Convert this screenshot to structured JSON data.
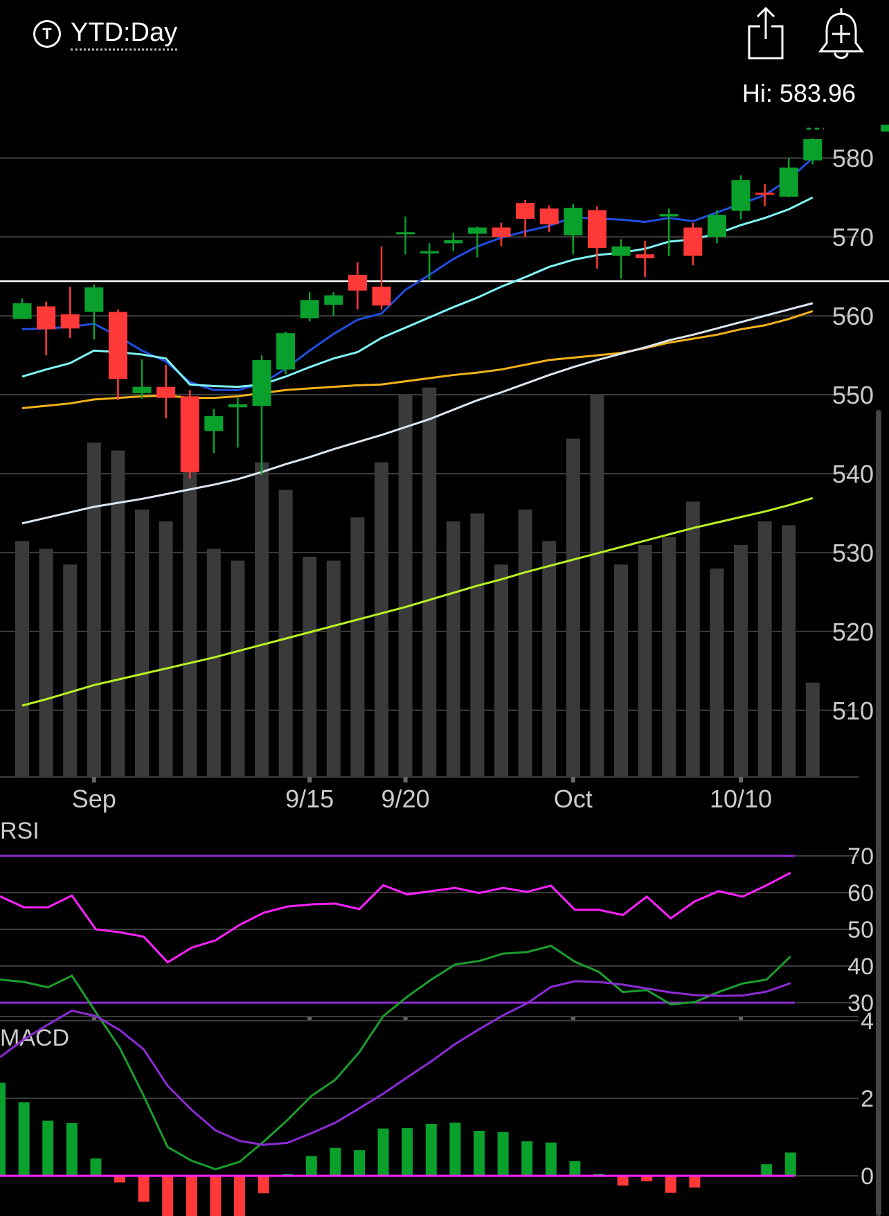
{
  "header": {
    "symbol_icon_letter": "T",
    "range_label": "YTD:Day",
    "hi_label": "Hi: 583.96"
  },
  "colors": {
    "up": "#0aa02c",
    "down": "#ff3838",
    "volume": "#3a3a3a",
    "ma_blue": "#1f4fe0",
    "ma_cyan": "#7ff6f6",
    "ma_gold": "#f2b319",
    "ma_white": "#dde6ee",
    "ma_lime": "#b9f222",
    "rsi_line": "#ff22ff",
    "rsi_band": "#8d2bd0",
    "macd_line": "#1b9e2d",
    "signal_line": "#8c2bd6",
    "zero_line": "#ff22ff"
  },
  "chart_data": [
    {
      "type": "candlestick",
      "ylim": [
        500,
        585
      ],
      "y_ticks": [
        510,
        520,
        530,
        540,
        550,
        560,
        570,
        580
      ],
      "x_ticks": [
        {
          "label": "Sep",
          "index": 3
        },
        {
          "label": "9/15",
          "index": 12
        },
        {
          "label": "9/20",
          "index": 16
        },
        {
          "label": "Oct",
          "index": 23
        },
        {
          "label": "10/10",
          "index": 30
        }
      ],
      "reference_line": 564.4,
      "candles": [
        {
          "o": 559.6,
          "c": 561.6,
          "h": 562.2,
          "l": 559.6
        },
        {
          "o": 561.2,
          "c": 558.3,
          "h": 561.8,
          "l": 555.0
        },
        {
          "o": 560.2,
          "c": 558.4,
          "h": 563.7,
          "l": 557.2
        },
        {
          "o": 560.5,
          "c": 563.6,
          "h": 564.0,
          "l": 557.0
        },
        {
          "o": 560.5,
          "c": 552.0,
          "h": 560.8,
          "l": 549.3
        },
        {
          "o": 550.2,
          "c": 551.0,
          "h": 554.5,
          "l": 549.5
        },
        {
          "o": 551.0,
          "c": 549.6,
          "h": 553.8,
          "l": 547.0
        },
        {
          "o": 549.8,
          "c": 540.2,
          "h": 550.6,
          "l": 539.4
        },
        {
          "o": 545.4,
          "c": 547.3,
          "h": 548.2,
          "l": 542.6
        },
        {
          "o": 548.4,
          "c": 548.8,
          "h": 549.6,
          "l": 543.3
        },
        {
          "o": 548.6,
          "c": 554.4,
          "h": 555.0,
          "l": 539.8
        },
        {
          "o": 553.2,
          "c": 557.8,
          "h": 558.0,
          "l": 552.6
        },
        {
          "o": 559.7,
          "c": 562.0,
          "h": 563.0,
          "l": 559.3
        },
        {
          "o": 561.4,
          "c": 562.6,
          "h": 563.0,
          "l": 560.0
        },
        {
          "o": 565.2,
          "c": 563.2,
          "h": 566.8,
          "l": 560.8
        },
        {
          "o": 563.7,
          "c": 561.3,
          "h": 568.8,
          "l": 560.8
        },
        {
          "o": 570.6,
          "c": 570.6,
          "h": 572.6,
          "l": 567.8
        },
        {
          "o": 567.9,
          "c": 568.2,
          "h": 569.2,
          "l": 564.6
        },
        {
          "o": 569.2,
          "c": 569.6,
          "h": 570.5,
          "l": 568.2
        },
        {
          "o": 570.4,
          "c": 571.2,
          "h": 571.3,
          "l": 567.4
        },
        {
          "o": 571.2,
          "c": 570.0,
          "h": 571.8,
          "l": 568.8
        },
        {
          "o": 574.3,
          "c": 572.3,
          "h": 574.7,
          "l": 570.0
        },
        {
          "o": 573.6,
          "c": 571.6,
          "h": 574.0,
          "l": 570.6
        },
        {
          "o": 570.2,
          "c": 573.7,
          "h": 574.2,
          "l": 567.8
        },
        {
          "o": 573.4,
          "c": 568.6,
          "h": 573.9,
          "l": 566.0
        },
        {
          "o": 567.6,
          "c": 568.8,
          "h": 569.7,
          "l": 564.7
        },
        {
          "o": 567.8,
          "c": 567.3,
          "h": 569.5,
          "l": 564.9
        },
        {
          "o": 572.6,
          "c": 572.9,
          "h": 573.6,
          "l": 567.6
        },
        {
          "o": 571.2,
          "c": 567.6,
          "h": 571.8,
          "l": 566.4
        },
        {
          "o": 570.0,
          "c": 572.8,
          "h": 573.4,
          "l": 569.2
        },
        {
          "o": 573.3,
          "c": 577.2,
          "h": 577.8,
          "l": 572.2
        },
        {
          "o": 575.6,
          "c": 575.5,
          "h": 576.7,
          "l": 573.9
        },
        {
          "o": 575.1,
          "c": 578.8,
          "h": 580.0,
          "l": 575.0
        },
        {
          "o": 579.7,
          "c": 582.4,
          "h": 582.5,
          "l": 579.2
        }
      ],
      "volume": [
        0.6,
        0.58,
        0.54,
        0.85,
        0.83,
        0.68,
        0.65,
        0.78,
        0.58,
        0.55,
        0.8,
        0.73,
        0.56,
        0.55,
        0.66,
        0.8,
        0.97,
        0.99,
        0.65,
        0.67,
        0.54,
        0.68,
        0.6,
        0.86,
        0.97,
        0.54,
        0.59,
        0.61,
        0.7,
        0.53,
        0.59,
        0.65,
        0.64,
        0.24
      ],
      "ma": [
        {
          "color": "ma_blue",
          "values": [
            558.3,
            558.4,
            558.6,
            559.0,
            557.4,
            555.6,
            554.2,
            551.6,
            550.6,
            550.6,
            551.4,
            553.3,
            555.6,
            557.7,
            559.5,
            560.3,
            563.3,
            565.2,
            567.2,
            568.8,
            569.9,
            570.7,
            571.4,
            572.5,
            572.3,
            572.2,
            571.9,
            572.4,
            572.0,
            573.1,
            574.2,
            575.3,
            577.3,
            580.0
          ]
        },
        {
          "color": "ma_cyan",
          "values": [
            552.3,
            553.2,
            554.0,
            555.6,
            555.4,
            555.1,
            554.6,
            551.3,
            551.1,
            551.0,
            551.3,
            552.3,
            553.5,
            554.6,
            555.4,
            557.2,
            558.5,
            559.8,
            561.1,
            562.3,
            563.7,
            564.9,
            566.2,
            567.1,
            567.7,
            568.0,
            568.5,
            569.4,
            569.7,
            570.4,
            571.5,
            572.4,
            573.5,
            575.0
          ]
        },
        {
          "color": "ma_gold",
          "values": [
            548.3,
            548.6,
            548.9,
            549.4,
            549.6,
            549.8,
            549.9,
            549.6,
            549.6,
            549.8,
            550.2,
            550.6,
            550.8,
            551.0,
            551.2,
            551.3,
            551.7,
            552.1,
            552.5,
            552.8,
            553.2,
            553.8,
            554.4,
            554.7,
            555.0,
            555.3,
            555.9,
            556.6,
            557.1,
            557.6,
            558.3,
            558.8,
            559.6,
            560.6
          ]
        },
        {
          "color": "ma_white",
          "values": [
            533.7,
            534.4,
            535.1,
            535.8,
            536.3,
            536.8,
            537.4,
            538.0,
            538.6,
            539.3,
            540.2,
            541.2,
            542.1,
            543.1,
            544.0,
            544.9,
            545.9,
            546.9,
            548.1,
            549.3,
            550.3,
            551.4,
            552.5,
            553.5,
            554.4,
            555.2,
            556.0,
            556.9,
            557.6,
            558.4,
            559.2,
            560.0,
            560.8,
            561.6
          ]
        },
        {
          "color": "ma_lime",
          "values": [
            510.6,
            511.4,
            512.3,
            513.2,
            513.9,
            514.6,
            515.3,
            516.0,
            516.7,
            517.5,
            518.3,
            519.1,
            519.9,
            520.7,
            521.5,
            522.3,
            523.1,
            524.0,
            524.9,
            525.8,
            526.6,
            527.5,
            528.3,
            529.1,
            529.9,
            530.7,
            531.5,
            532.3,
            533.1,
            533.8,
            534.5,
            535.2,
            536.0,
            536.9
          ]
        }
      ]
    },
    {
      "type": "line",
      "title": "RSI",
      "ylim": [
        25,
        75
      ],
      "y_ticks": [
        30,
        40,
        50,
        60,
        70
      ],
      "bands": [
        70,
        30
      ],
      "values": [
        59.0,
        56.0,
        56.0,
        59.2,
        50.0,
        49.2,
        48.0,
        41.0,
        45.0,
        47.0,
        51.2,
        54.5,
        56.2,
        56.8,
        57.0,
        55.5,
        62.0,
        59.5,
        60.4,
        61.3,
        59.9,
        61.3,
        60.2,
        61.9,
        55.3,
        55.3,
        53.9,
        58.9,
        53.0,
        57.6,
        60.4,
        58.9,
        62.0,
        65.4
      ]
    },
    {
      "type": "bar+line",
      "title": "MACD",
      "ylim": [
        -1.6,
        5.8
      ],
      "y_ticks": [
        0,
        2,
        4
      ],
      "macd": [
        5.06,
        5.0,
        4.86,
        5.16,
        4.22,
        3.3,
        2.06,
        0.74,
        0.39,
        0.17,
        0.36,
        0.88,
        1.44,
        2.06,
        2.48,
        3.19,
        4.12,
        4.62,
        5.06,
        5.45,
        5.54,
        5.73,
        5.77,
        5.93,
        5.52,
        5.26,
        4.74,
        4.79,
        4.42,
        4.48,
        4.74,
        4.96,
        5.06,
        5.66
      ],
      "signal": [
        3.06,
        3.52,
        3.9,
        4.26,
        4.12,
        3.76,
        3.26,
        2.32,
        1.7,
        1.17,
        0.9,
        0.8,
        0.85,
        1.1,
        1.37,
        1.74,
        2.12,
        2.54,
        2.95,
        3.4,
        3.78,
        4.14,
        4.45,
        4.87,
        5.02,
        5.0,
        4.93,
        4.83,
        4.73,
        4.66,
        4.64,
        4.65,
        4.75,
        4.97
      ],
      "histogram": [
        2.4,
        1.9,
        1.42,
        1.36,
        0.45,
        -0.17,
        -0.67,
        -1.57,
        -1.75,
        -1.59,
        -1.07,
        -0.45,
        0.05,
        0.51,
        0.72,
        0.66,
        1.22,
        1.23,
        1.34,
        1.37,
        1.16,
        1.13,
        0.89,
        0.86,
        0.38,
        0.05,
        -0.25,
        -0.14,
        -0.44,
        -0.3,
        0.0,
        0.0,
        0.3,
        0.6
      ]
    }
  ]
}
